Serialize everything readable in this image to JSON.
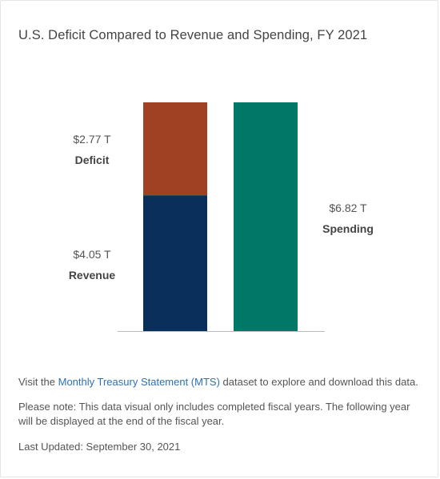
{
  "header": {
    "title": "U.S. Deficit Compared to Revenue and Spending, FY 2021"
  },
  "chart_data": {
    "type": "bar",
    "stacked": true,
    "unit": "T",
    "categories": [
      "Revenue / Deficit",
      "Spending"
    ],
    "series": [
      {
        "name": "Revenue",
        "values": [
          4.05,
          0
        ],
        "color": "#0a2f5a"
      },
      {
        "name": "Deficit",
        "values": [
          2.77,
          0
        ],
        "color": "#a14123"
      },
      {
        "name": "Spending",
        "values": [
          0,
          6.82
        ],
        "color": "#007868"
      }
    ],
    "labels": [
      {
        "value": "$2.77 T",
        "name": "Deficit"
      },
      {
        "value": "$4.05 T",
        "name": "Revenue"
      },
      {
        "value": "$6.82 T",
        "name": "Spending"
      }
    ],
    "ylim": [
      0,
      6.82
    ],
    "grid": false,
    "legend": "none"
  },
  "footer": {
    "visit_prefix": "Visit the ",
    "link_text": "Monthly Treasury Statement (MTS)",
    "visit_suffix": " dataset to explore and download this data.",
    "note": "Please note: This data visual only includes completed fiscal years. The following year will be displayed at the end of the fiscal year.",
    "last_updated": "Last Updated: September 30, 2021"
  }
}
